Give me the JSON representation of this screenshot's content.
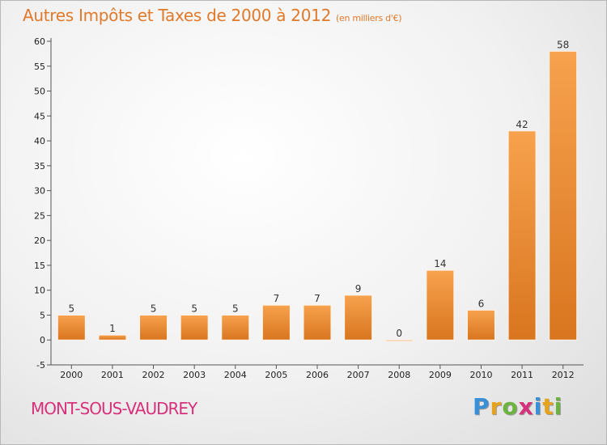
{
  "header": {
    "title": "Autres Impôts et Taxes de 2000 à 2012",
    "unit": "(en milliers d'€)"
  },
  "footer": {
    "place": "MONT-SOUS-VAUDREY",
    "brand_letters": [
      "P",
      "r",
      "o",
      "x",
      "i",
      "t",
      "i"
    ],
    "brand_colors": [
      "#3a8fd9",
      "#e8a31c",
      "#6cb33f",
      "#d8317c",
      "#3a8fd9",
      "#e8a31c",
      "#6cb33f"
    ]
  },
  "chart_data": {
    "type": "bar",
    "title": "Autres Impôts et Taxes de 2000 à 2012",
    "subtitle": "(en milliers d'€)",
    "xlabel": "",
    "ylabel": "",
    "categories": [
      "2000",
      "2001",
      "2002",
      "2003",
      "2004",
      "2005",
      "2006",
      "2007",
      "2008",
      "2009",
      "2010",
      "2011",
      "2012"
    ],
    "values": [
      5,
      1,
      5,
      5,
      5,
      7,
      7,
      9,
      0,
      14,
      6,
      42,
      58
    ],
    "ylim": [
      -5,
      60
    ],
    "yticks": [
      -5,
      0,
      5,
      10,
      15,
      20,
      25,
      30,
      35,
      40,
      45,
      50,
      55,
      60
    ],
    "grid": false,
    "legend": "none",
    "bar_color": "#f0913a"
  }
}
